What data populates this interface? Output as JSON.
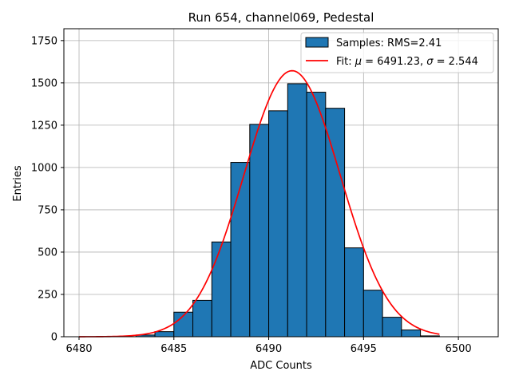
{
  "chart_data": {
    "type": "bar",
    "title": "Run 654, channel069, Pedestal",
    "xlabel": "ADC Counts",
    "ylabel": "Entries",
    "xlim": [
      6479.2,
      6502.1
    ],
    "ylim": [
      0,
      1820
    ],
    "xticks": [
      6480,
      6485,
      6490,
      6495,
      6500
    ],
    "yticks": [
      0,
      250,
      500,
      750,
      1000,
      1250,
      1500,
      1750
    ],
    "grid": true,
    "legend_position": "top-right",
    "histogram": {
      "label": "Samples: RMS=2.41",
      "color": "#1f77b4",
      "bin_edges": [
        6483,
        6484,
        6485,
        6486,
        6487,
        6488,
        6489,
        6490,
        6491,
        6492,
        6493,
        6494,
        6495,
        6496,
        6497,
        6498,
        6499
      ],
      "counts": [
        10,
        30,
        145,
        215,
        560,
        1030,
        1255,
        1335,
        1495,
        1445,
        1350,
        525,
        275,
        115,
        40,
        5
      ]
    },
    "fit": {
      "label": "Fit: μ = 6491.23, σ = 2.544",
      "label_prefix": "Fit: ",
      "mu_symbol": "μ",
      "mu_text": " = 6491.23, ",
      "sigma_symbol": "σ",
      "sigma_text": " = 2.544",
      "color": "#ff0000",
      "mu": 6491.23,
      "sigma": 2.544,
      "amplitude": 1572,
      "x_range": [
        6480,
        6499
      ]
    }
  }
}
